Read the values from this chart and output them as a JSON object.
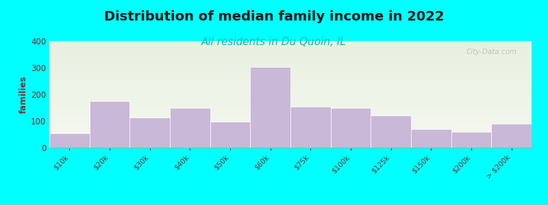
{
  "title": "Distribution of median family income in 2022",
  "subtitle": "All residents in Du Quoin, IL",
  "ylabel": "families",
  "categories": [
    "$10k",
    "$20k",
    "$30k",
    "$40k",
    "$50k",
    "$60k",
    "$75k",
    "$100k",
    "$125k",
    "$150k",
    "$200k",
    "> $200k"
  ],
  "values": [
    55,
    175,
    112,
    150,
    97,
    303,
    155,
    150,
    120,
    70,
    58,
    90
  ],
  "bar_color": "#c9b8d8",
  "bar_edge_color": "#ffffff",
  "title_fontsize": 14,
  "title_color": "#1a1a1a",
  "subtitle_fontsize": 11,
  "subtitle_color": "#00bbbb",
  "ylabel_color": "#7a3030",
  "tick_color": "#7a3030",
  "outer_bg": "#00ffff",
  "plot_bg_top": "#e8f0e0",
  "plot_bg_bottom": "#f5f8f0",
  "ylim": [
    0,
    400
  ],
  "yticks": [
    0,
    100,
    200,
    300,
    400
  ],
  "watermark": "City-Data.com"
}
